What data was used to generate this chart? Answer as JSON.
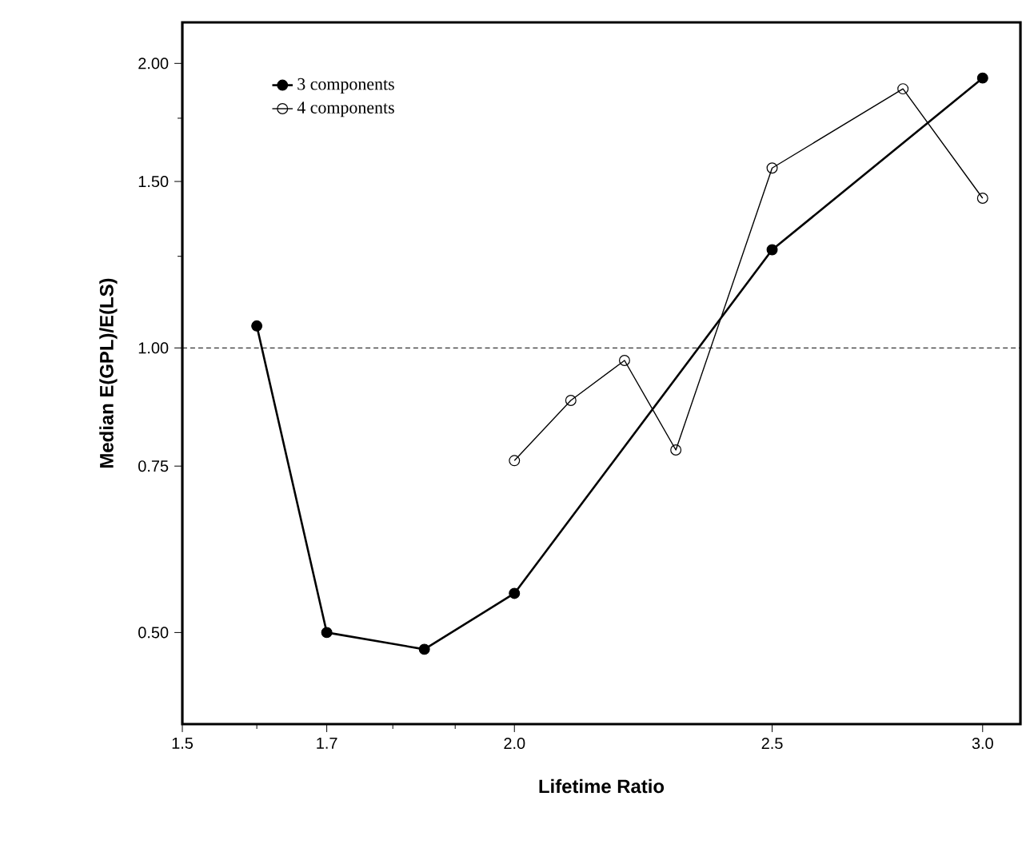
{
  "chart_data": {
    "type": "line",
    "xlabel": "Lifetime Ratio",
    "ylabel": "Median E(GPL)/E(LS)",
    "log": "xy",
    "xlim": [
      1.5,
      3.1
    ],
    "ylim": [
      0.4,
      2.21
    ],
    "xticks": [
      {
        "value": 1.5,
        "label": "1.5"
      },
      {
        "value": 1.6,
        "label": null
      },
      {
        "value": 1.7,
        "label": "1.7"
      },
      {
        "value": 1.8,
        "label": null
      },
      {
        "value": 1.9,
        "label": null
      },
      {
        "value": 2.0,
        "label": "2.0"
      },
      {
        "value": 2.5,
        "label": "2.5"
      },
      {
        "value": 3.0,
        "label": "3.0"
      }
    ],
    "yticks": [
      {
        "value": 0.5,
        "label": "0.50"
      },
      {
        "value": 0.75,
        "label": "0.75"
      },
      {
        "value": 1.0,
        "label": "1.00"
      },
      {
        "value": 1.25,
        "label": null
      },
      {
        "value": 1.5,
        "label": "1.50"
      },
      {
        "value": 1.75,
        "label": null
      },
      {
        "value": 2.0,
        "label": "2.00"
      }
    ],
    "legend": "top left",
    "ref_lines": [
      {
        "axis": "y",
        "value": 1.0,
        "line_style": "dashed",
        "color": "#000000"
      }
    ],
    "series": [
      {
        "name": "3 components",
        "color": "#000000",
        "marker": "circle",
        "x": [
          1.6,
          1.7,
          1.85,
          2.0,
          2.5,
          3.0
        ],
        "values": [
          1.055,
          0.5,
          0.48,
          0.55,
          1.27,
          1.93
        ]
      },
      {
        "name": "4 components",
        "color": "#000000",
        "marker": "circle open",
        "x": [
          2.0,
          2.1,
          2.2,
          2.3,
          2.5,
          2.8,
          3.0
        ],
        "values": [
          0.76,
          0.88,
          0.97,
          0.78,
          1.55,
          1.88,
          1.44
        ]
      }
    ]
  }
}
